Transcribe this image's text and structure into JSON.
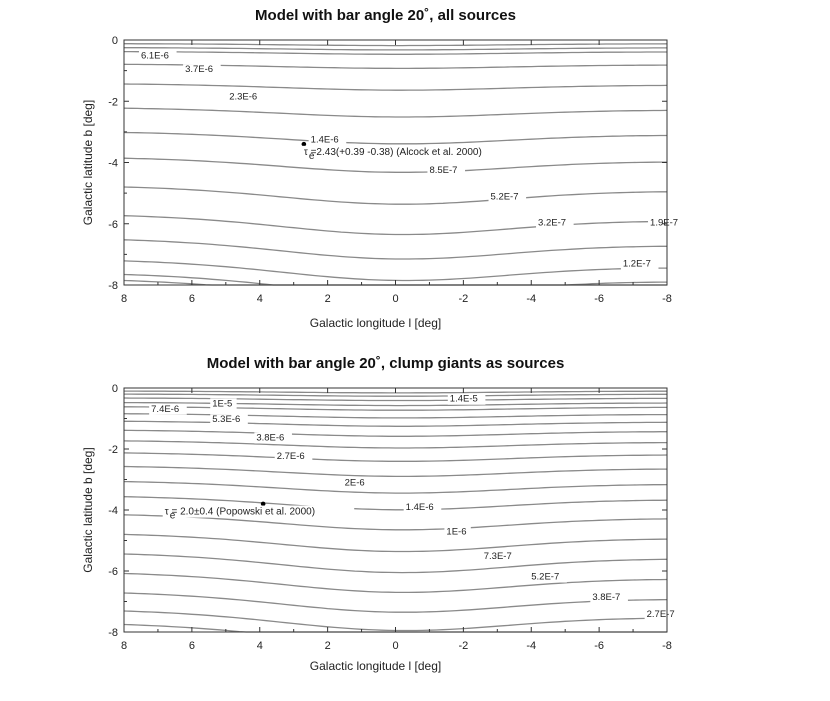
{
  "chart_data": [
    {
      "type": "contour",
      "title": "Model with bar angle 20˚, all sources",
      "xlabel": "Galactic longitude l [deg]",
      "ylabel": "Galactic latitude b [deg]",
      "xlim": [
        8,
        -8
      ],
      "ylim": [
        -8,
        0
      ],
      "xticks": [
        8,
        6,
        4,
        2,
        0,
        -2,
        -4,
        -6,
        -8
      ],
      "yticks": [
        0,
        -2,
        -4,
        -6,
        -8
      ],
      "contours": [
        {
          "level": "6.1E-6",
          "label_at": [
            7.5,
            -0.6
          ]
        },
        {
          "level": "3.7E-6",
          "label_at": [
            6.2,
            -1.05
          ]
        },
        {
          "level": "2.3E-6",
          "label_at": [
            4.9,
            -1.95
          ]
        },
        {
          "level": "1.4E-6",
          "label_at": [
            2.5,
            -3.35
          ]
        },
        {
          "level": "8.5E-7",
          "label_at": [
            -1.0,
            -4.35
          ]
        },
        {
          "level": "5.2E-7",
          "label_at": [
            -2.8,
            -5.2
          ]
        },
        {
          "level": "3.2E-7",
          "label_at": [
            -4.2,
            -6.05
          ]
        },
        {
          "level": "1.9E-7",
          "label_at": [
            -7.5,
            -6.05
          ]
        },
        {
          "level": "1.2E-7",
          "label_at": [
            -6.7,
            -7.4
          ]
        }
      ],
      "observation": {
        "l": 2.7,
        "b": -3.4,
        "label": "τ  =2.43(+0.39 -0.38) (Alcock et al. 2000)",
        "subscript": "e"
      }
    },
    {
      "type": "contour",
      "title": "Model with bar angle 20˚, clump giants as sources",
      "xlabel": "Galactic longitude l [deg]",
      "ylabel": "Galactic latitude b [deg]",
      "xlim": [
        8,
        -8
      ],
      "ylim": [
        -8,
        0
      ],
      "xticks": [
        8,
        6,
        4,
        2,
        0,
        -2,
        -4,
        -6,
        -8
      ],
      "yticks": [
        0,
        -2,
        -4,
        -6,
        -8
      ],
      "contours": [
        {
          "level": "1.4E-5",
          "label_at": [
            -1.6,
            -0.45
          ]
        },
        {
          "level": "1E-5",
          "label_at": [
            5.4,
            -0.6
          ]
        },
        {
          "level": "7.4E-6",
          "label_at": [
            7.2,
            -0.78
          ]
        },
        {
          "level": "5.3E-6",
          "label_at": [
            5.4,
            -1.12
          ]
        },
        {
          "level": "3.8E-6",
          "label_at": [
            4.1,
            -1.72
          ]
        },
        {
          "level": "2.7E-6",
          "label_at": [
            3.5,
            -2.33
          ]
        },
        {
          "level": "2E-6",
          "label_at": [
            1.5,
            -3.2
          ]
        },
        {
          "level": "1.4E-6",
          "label_at": [
            -0.3,
            -4.0
          ]
        },
        {
          "level": "1E-6",
          "label_at": [
            -1.5,
            -4.8
          ]
        },
        {
          "level": "7.3E-7",
          "label_at": [
            -2.6,
            -5.6
          ]
        },
        {
          "level": "5.2E-7",
          "label_at": [
            -4.0,
            -6.28
          ]
        },
        {
          "level": "3.8E-7",
          "label_at": [
            -5.8,
            -6.95
          ]
        },
        {
          "level": "2.7E-7",
          "label_at": [
            -7.4,
            -7.5
          ]
        }
      ],
      "observation": {
        "l": 3.9,
        "b": -3.8,
        "label": "τ  = 2.0±0.4 (Popowski et al. 2000)",
        "subscript": "e"
      }
    }
  ]
}
